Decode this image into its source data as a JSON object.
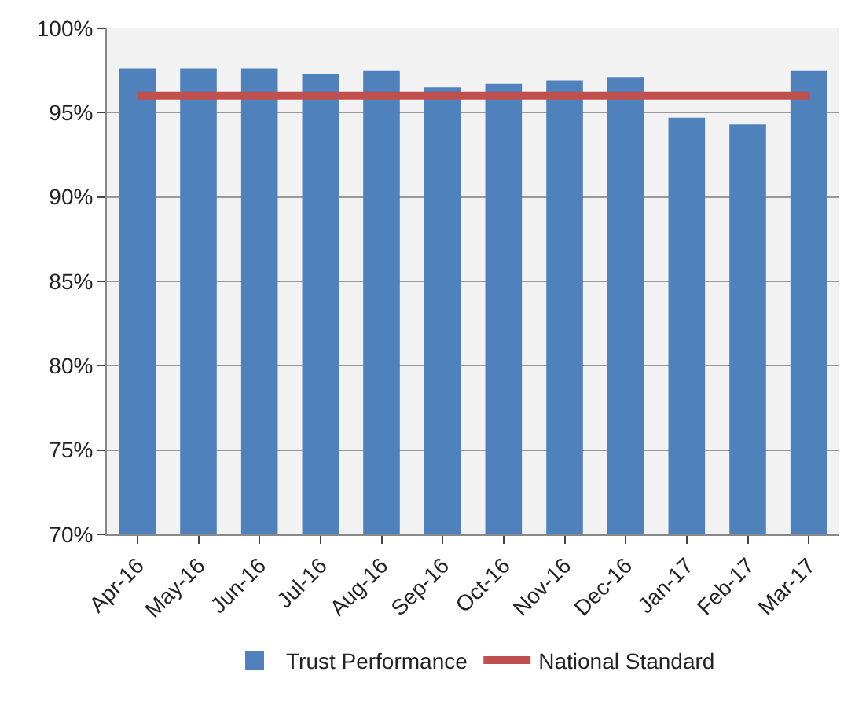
{
  "chart_data": {
    "type": "bar",
    "categories": [
      "Apr-16",
      "May-16",
      "Jun-16",
      "Jul-16",
      "Aug-16",
      "Sep-16",
      "Oct-16",
      "Nov-16",
      "Dec-16",
      "Jan-17",
      "Feb-17",
      "Mar-17"
    ],
    "series": [
      {
        "name": "Trust Performance",
        "color": "#4f81bd",
        "values": [
          97.6,
          97.6,
          97.6,
          97.3,
          97.5,
          96.5,
          96.7,
          96.9,
          97.1,
          94.7,
          94.3,
          97.5
        ]
      },
      {
        "name": "National Standard",
        "type": "line",
        "color": "#c0504d",
        "values": [
          96,
          96,
          96,
          96,
          96,
          96,
          96,
          96,
          96,
          96,
          96,
          96
        ]
      }
    ],
    "ylim": [
      70,
      100
    ],
    "yticks": [
      {
        "value": 70,
        "label": "70%"
      },
      {
        "value": 75,
        "label": "75%"
      },
      {
        "value": 80,
        "label": "80%"
      },
      {
        "value": 85,
        "label": "85%"
      },
      {
        "value": 90,
        "label": "90%"
      },
      {
        "value": 95,
        "label": "95%"
      },
      {
        "value": 100,
        "label": "100%"
      }
    ],
    "grid": "y",
    "legend": "bottom"
  }
}
